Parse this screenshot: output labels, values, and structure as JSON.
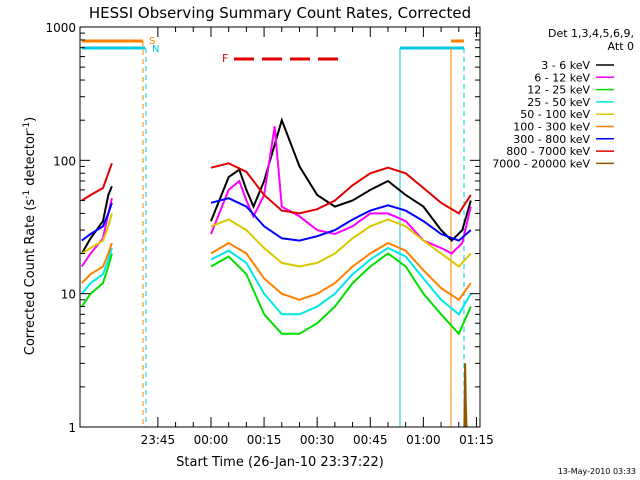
{
  "chart_data": {
    "type": "line",
    "title": "HESSI Observing Summary Count Rates, Corrected",
    "ylabel_parts": [
      "Corrected Count Rate (s",
      "-1",
      " detector",
      "-1",
      ")"
    ],
    "xlabel": "Start Time (26-Jan-10 23:37:22)",
    "yscale": "log",
    "ylim": [
      1,
      1000
    ],
    "xlim_minutes": [
      23.0,
      136.0
    ],
    "xticks": [
      {
        "label": "23:45",
        "t": 45
      },
      {
        "label": "00:00",
        "t": 60
      },
      {
        "label": "00:15",
        "t": 75
      },
      {
        "label": "00:30",
        "t": 90
      },
      {
        "label": "00:45",
        "t": 105
      },
      {
        "label": "01:00",
        "t": 120
      },
      {
        "label": "01:15",
        "t": 135
      }
    ],
    "yticks": [
      {
        "label": "1",
        "v": 1
      },
      {
        "label": "10",
        "v": 10
      },
      {
        "label": "100",
        "v": 100
      },
      {
        "label": "1000",
        "v": 1000
      }
    ],
    "legend_title": [
      "Det 1,3,4,5,6,9,",
      "Att 0"
    ],
    "legend_position": "right",
    "series": [
      {
        "name": "3 - 6 keV",
        "color": "#000000",
        "t": [
          23.5,
          26,
          29.5,
          31,
          32,
          37,
          40,
          52,
          60,
          65,
          68,
          70,
          72,
          75,
          80,
          85,
          90,
          95,
          100,
          105,
          110,
          115,
          120,
          125,
          128,
          131,
          133.4
        ],
        "v": [
          20,
          26,
          35,
          55,
          64,
          0,
          0,
          0,
          35,
          75,
          85,
          60,
          45,
          70,
          200,
          90,
          55,
          45,
          50,
          60,
          70,
          55,
          45,
          30,
          25,
          30,
          50
        ]
      },
      {
        "name": "6 - 12 keV",
        "color": "#ff00ff",
        "t": [
          23.5,
          26,
          29.5,
          31,
          32,
          37,
          40,
          52,
          60,
          65,
          68,
          70,
          72,
          75,
          78,
          80,
          85,
          90,
          95,
          100,
          105,
          110,
          115,
          120,
          125,
          128,
          131,
          133.4
        ],
        "v": [
          16,
          20,
          26,
          40,
          52,
          0,
          0,
          0,
          28,
          60,
          70,
          50,
          38,
          55,
          180,
          45,
          38,
          30,
          28,
          32,
          40,
          40,
          35,
          25,
          22,
          20,
          24,
          45
        ]
      },
      {
        "name": "12 - 25 keV",
        "color": "#00e000",
        "t": [
          23.5,
          26,
          29.5,
          31,
          32,
          37,
          40,
          52,
          60,
          65,
          70,
          75,
          80,
          85,
          90,
          95,
          100,
          105,
          110,
          115,
          120,
          125,
          130,
          133.4
        ],
        "v": [
          8,
          10,
          12,
          16,
          20,
          0,
          0,
          0,
          16,
          19,
          14,
          7,
          5,
          5,
          6,
          8,
          12,
          16,
          20,
          16,
          10,
          7,
          5,
          8
        ]
      },
      {
        "name": "25 - 50 keV",
        "color": "#00e8e8",
        "t": [
          23.5,
          26,
          29.5,
          31,
          32,
          37,
          40,
          52,
          60,
          65,
          70,
          75,
          80,
          85,
          90,
          95,
          100,
          105,
          110,
          115,
          120,
          125,
          130,
          133.4
        ],
        "v": [
          10,
          12,
          14,
          18,
          22,
          0,
          0,
          0,
          18,
          21,
          17,
          10,
          7,
          7,
          8,
          10,
          14,
          18,
          22,
          19,
          13,
          9,
          7,
          10
        ]
      },
      {
        "name": "50 - 100 keV",
        "color": "#d8c800",
        "t": [
          23.5,
          26,
          29.5,
          31,
          32,
          37,
          40,
          52,
          60,
          65,
          70,
          75,
          80,
          85,
          90,
          95,
          100,
          105,
          110,
          115,
          120,
          125,
          130,
          133.4
        ],
        "v": [
          20,
          22,
          25,
          32,
          40,
          0,
          0,
          0,
          32,
          36,
          30,
          22,
          17,
          16,
          17,
          20,
          26,
          32,
          36,
          32,
          25,
          20,
          16,
          20
        ]
      },
      {
        "name": "100 - 300 keV",
        "color": "#ff8000",
        "t": [
          23.5,
          26,
          29.5,
          31,
          32,
          37,
          40,
          52,
          60,
          65,
          70,
          75,
          80,
          85,
          90,
          95,
          100,
          105,
          110,
          115,
          120,
          125,
          130,
          133.4
        ],
        "v": [
          12,
          14,
          16,
          20,
          24,
          0,
          0,
          0,
          20,
          24,
          20,
          13,
          10,
          9,
          10,
          12,
          16,
          20,
          24,
          21,
          15,
          11,
          9,
          12
        ]
      },
      {
        "name": "300 - 800 keV",
        "color": "#0000ff",
        "t": [
          23.5,
          26,
          29.5,
          31,
          32,
          37,
          40,
          52,
          60,
          65,
          70,
          75,
          80,
          85,
          90,
          95,
          100,
          105,
          110,
          115,
          120,
          125,
          130,
          133.4
        ],
        "v": [
          25,
          28,
          32,
          40,
          48,
          0,
          0,
          0,
          48,
          52,
          45,
          32,
          26,
          25,
          27,
          30,
          36,
          42,
          46,
          42,
          35,
          28,
          25,
          30
        ]
      },
      {
        "name": "800 - 7000 keV",
        "color": "#e00000",
        "t": [
          23.5,
          26,
          29.5,
          31,
          32,
          37,
          40,
          52,
          60,
          65,
          70,
          75,
          80,
          85,
          90,
          95,
          100,
          105,
          110,
          115,
          120,
          125,
          130,
          133.4
        ],
        "v": [
          50,
          55,
          62,
          80,
          95,
          0,
          0,
          0,
          88,
          95,
          82,
          55,
          42,
          40,
          43,
          50,
          65,
          80,
          88,
          80,
          62,
          48,
          40,
          55
        ]
      },
      {
        "name": "7000 - 20000 keV",
        "color": "#8b5a00",
        "t": [
          131.6,
          131.8,
          132.0,
          132.2
        ],
        "v": [
          1,
          3,
          1.5,
          1
        ]
      }
    ],
    "annotations": [
      {
        "label": "S",
        "color": "#ff8000"
      },
      {
        "label": "N",
        "color": "#00c8e0"
      },
      {
        "label": "F",
        "color": "#e00000"
      }
    ]
  },
  "footer_date": "13-May-2010 03:33"
}
